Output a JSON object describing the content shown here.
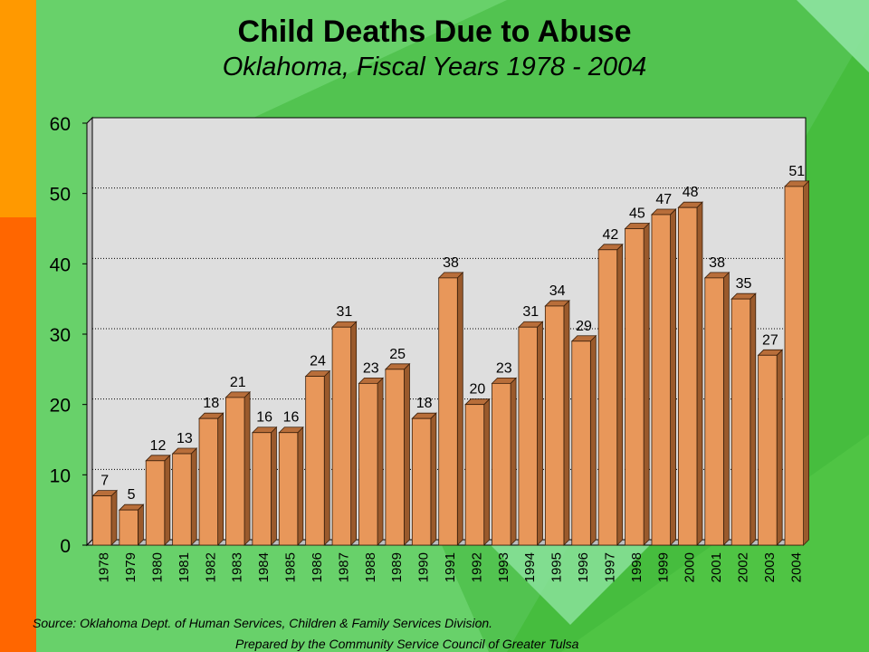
{
  "slide": {
    "source_note": "Source:  Oklahoma Dept. of Human Services, Children & Family Services Division.",
    "prepared_note": "Prepared by the Community Service Council of Greater Tulsa"
  },
  "colors": {
    "background": "#4fc444",
    "accent_orange": "#ff9900",
    "accent_red": "#ff6600",
    "bar": "#e8975a",
    "plot_area": "#dedede"
  },
  "chart_data": {
    "type": "bar",
    "title": "Child Deaths Due to Abuse",
    "subtitle": "Oklahoma, Fiscal Years 1978 - 2004",
    "xlabel": "",
    "ylabel": "",
    "categories": [
      "1978",
      "1979",
      "1980",
      "1981",
      "1982",
      "1983",
      "1984",
      "1985",
      "1986",
      "1987",
      "1988",
      "1989",
      "1990",
      "1991",
      "1992",
      "1993",
      "1994",
      "1995",
      "1996",
      "1997",
      "1998",
      "1999",
      "2000",
      "2001",
      "2002",
      "2003",
      "2004"
    ],
    "values": [
      7,
      5,
      12,
      13,
      18,
      21,
      16,
      16,
      24,
      31,
      23,
      25,
      18,
      38,
      20,
      23,
      31,
      34,
      29,
      42,
      45,
      47,
      48,
      38,
      35,
      27,
      51
    ],
    "ylim": [
      0,
      60
    ],
    "yticks": [
      0,
      10,
      20,
      30,
      40,
      50,
      60
    ],
    "grid": "horizontal dotted",
    "data_labels": true,
    "bar_style": "3d"
  }
}
